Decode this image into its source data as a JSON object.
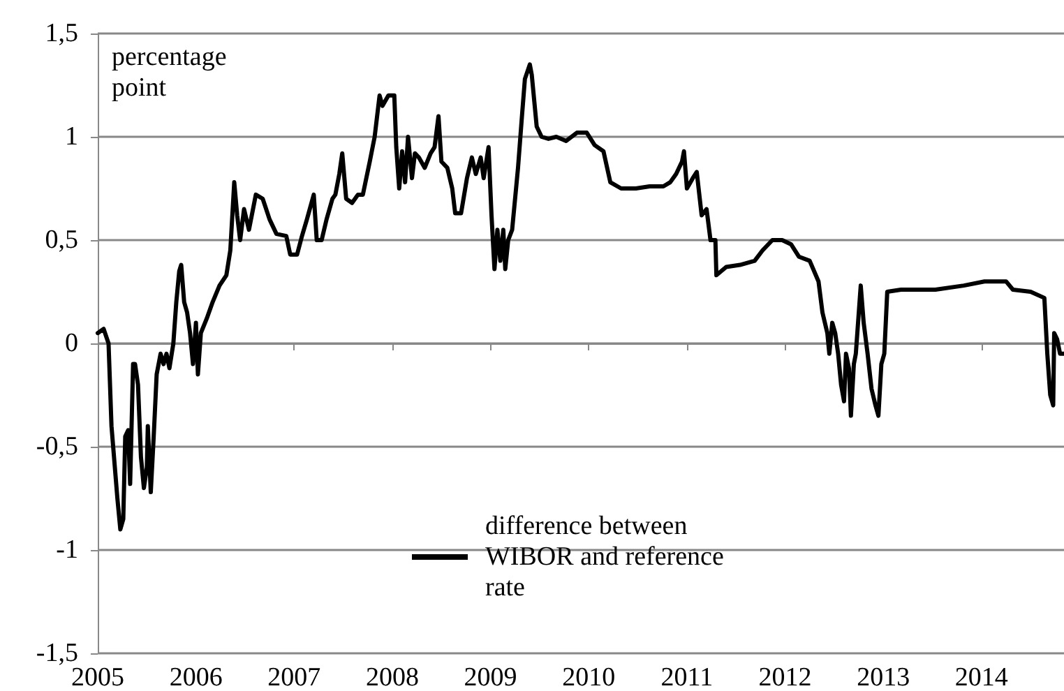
{
  "chart_data": {
    "type": "line",
    "ylabel": "percentage point",
    "x": [
      2005,
      2005.06,
      2005.11,
      2005.14,
      2005.2,
      2005.23,
      2005.26,
      2005.28,
      2005.31,
      2005.33,
      2005.36,
      2005.38,
      2005.41,
      2005.44,
      2005.47,
      2005.5,
      2005.51,
      2005.54,
      2005.57,
      2005.6,
      2005.64,
      2005.67,
      2005.7,
      2005.73,
      2005.77,
      2005.8,
      2005.83,
      2005.85,
      2005.88,
      2005.91,
      2005.94,
      2005.97,
      2006,
      2006.02,
      2006.05,
      2006.11,
      2006.17,
      2006.24,
      2006.31,
      2006.35,
      2006.39,
      2006.42,
      2006.45,
      2006.49,
      2006.54,
      2006.61,
      2006.68,
      2006.75,
      2006.82,
      2006.92,
      2006.96,
      2007.03,
      2007.08,
      2007.13,
      2007.2,
      2007.23,
      2007.28,
      2007.33,
      2007.39,
      2007.42,
      2007.46,
      2007.49,
      2007.53,
      2007.59,
      2007.65,
      2007.7,
      2007.77,
      2007.82,
      2007.87,
      2007.9,
      2007.96,
      2008.02,
      2008.04,
      2008.07,
      2008.1,
      2008.13,
      2008.16,
      2008.2,
      2008.23,
      2008.27,
      2008.33,
      2008.39,
      2008.43,
      2008.47,
      2008.5,
      2008.56,
      2008.61,
      2008.64,
      2008.7,
      2008.76,
      2008.81,
      2008.85,
      2008.9,
      2008.93,
      2008.98,
      2009.01,
      2009.04,
      2009.07,
      2009.1,
      2009.13,
      2009.15,
      2009.18,
      2009.22,
      2009.28,
      2009.32,
      2009.35,
      2009.4,
      2009.42,
      2009.47,
      2009.52,
      2009.59,
      2009.67,
      2009.77,
      2009.88,
      2009.98,
      2010.06,
      2010.15,
      2010.22,
      2010.33,
      2010.48,
      2010.62,
      2010.76,
      2010.83,
      2010.89,
      2010.95,
      2010.97,
      2011,
      2011.06,
      2011.1,
      2011.15,
      2011.2,
      2011.24,
      2011.29,
      2011.3,
      2011.4,
      2011.54,
      2011.69,
      2011.77,
      2011.87,
      2011.97,
      2012.06,
      2012.14,
      2012.25,
      2012.34,
      2012.38,
      2012.43,
      2012.45,
      2012.48,
      2012.51,
      2012.54,
      2012.57,
      2012.6,
      2012.62,
      2012.65,
      2012.67,
      2012.7,
      2012.72,
      2012.77,
      2012.8,
      2012.84,
      2012.88,
      2012.92,
      2012.95,
      2012.98,
      2013.01,
      2013.04,
      2013.18,
      2013.32,
      2013.53,
      2013.82,
      2014.03,
      2014.25,
      2014.32,
      2014.5,
      2014.64,
      2014.67,
      2014.7,
      2014.73,
      2014.74,
      2014.77,
      2014.8,
      2014.84
    ],
    "series": [
      {
        "name": "difference between WIBOR and reference rate",
        "color": "#000000",
        "values": [
          0.05,
          0.07,
          0,
          -0.4,
          -0.75,
          -0.9,
          -0.85,
          -0.45,
          -0.42,
          -0.68,
          -0.1,
          -0.1,
          -0.2,
          -0.55,
          -0.7,
          -0.6,
          -0.4,
          -0.72,
          -0.45,
          -0.15,
          -0.05,
          -0.1,
          -0.05,
          -0.12,
          0,
          0.2,
          0.35,
          0.38,
          0.2,
          0.15,
          0.05,
          -0.1,
          0.1,
          -0.15,
          0.05,
          0.12,
          0.2,
          0.28,
          0.33,
          0.45,
          0.78,
          0.62,
          0.5,
          0.65,
          0.55,
          0.72,
          0.7,
          0.6,
          0.53,
          0.52,
          0.43,
          0.43,
          0.52,
          0.6,
          0.72,
          0.5,
          0.5,
          0.6,
          0.7,
          0.72,
          0.82,
          0.92,
          0.7,
          0.68,
          0.72,
          0.72,
          0.88,
          1,
          1.2,
          1.15,
          1.2,
          1.2,
          0.95,
          0.75,
          0.93,
          0.78,
          1,
          0.8,
          0.92,
          0.9,
          0.85,
          0.92,
          0.95,
          1.1,
          0.88,
          0.85,
          0.75,
          0.63,
          0.63,
          0.8,
          0.9,
          0.82,
          0.9,
          0.8,
          0.95,
          0.62,
          0.36,
          0.55,
          0.4,
          0.55,
          0.36,
          0.5,
          0.55,
          0.85,
          1.1,
          1.28,
          1.35,
          1.3,
          1.05,
          1,
          0.99,
          1,
          0.98,
          1.02,
          1.02,
          0.96,
          0.93,
          0.78,
          0.75,
          0.75,
          0.76,
          0.76,
          0.78,
          0.82,
          0.88,
          0.93,
          0.75,
          0.8,
          0.83,
          0.62,
          0.65,
          0.5,
          0.5,
          0.33,
          0.37,
          0.38,
          0.4,
          0.45,
          0.5,
          0.5,
          0.48,
          0.42,
          0.4,
          0.3,
          0.15,
          0.05,
          -0.05,
          0.1,
          0.05,
          -0.05,
          -0.2,
          -0.28,
          -0.05,
          -0.12,
          -0.35,
          -0.1,
          -0.05,
          0.28,
          0.1,
          -0.05,
          -0.22,
          -0.3,
          -0.35,
          -0.1,
          -0.05,
          0.25,
          0.26,
          0.26,
          0.26,
          0.28,
          0.3,
          0.3,
          0.26,
          0.25,
          0.22,
          -0.05,
          -0.25,
          -0.3,
          0.05,
          0.02,
          -0.05,
          -0.05
        ]
      }
    ],
    "xlim": [
      2005,
      2014.84
    ],
    "xticks": [
      2005,
      2006,
      2007,
      2008,
      2009,
      2010,
      2011,
      2012,
      2013,
      2014
    ],
    "ylim": [
      -1.5,
      1.5
    ],
    "yticks": [
      {
        "value": -1.5,
        "label": "-1,5"
      },
      {
        "value": -1,
        "label": "-1"
      },
      {
        "value": -0.5,
        "label": "-0,5"
      },
      {
        "value": 0,
        "label": "0"
      },
      {
        "value": 0.5,
        "label": "0,5"
      },
      {
        "value": 1,
        "label": "1"
      },
      {
        "value": 1.5,
        "label": "1,5"
      }
    ],
    "grid": "y",
    "legend": "bottom",
    "marker": "none",
    "line_style": "solid"
  }
}
